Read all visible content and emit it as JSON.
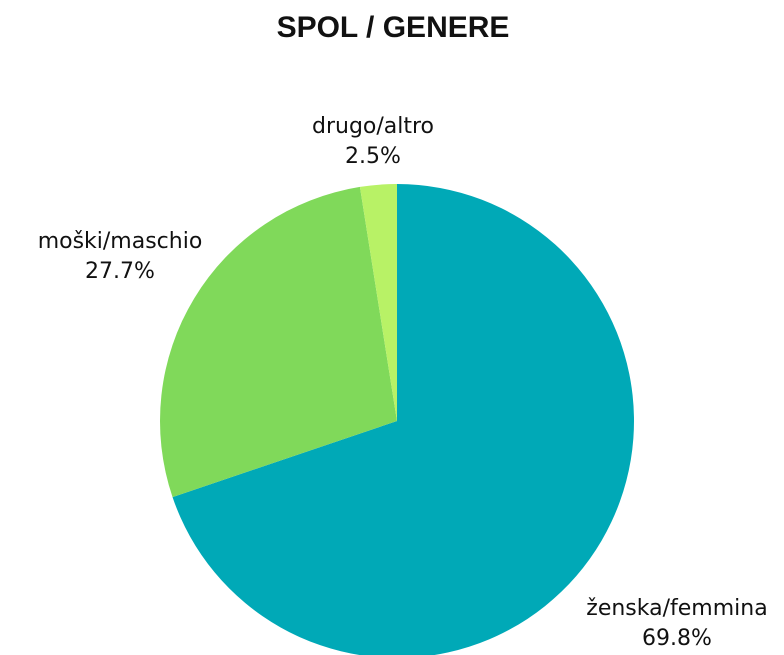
{
  "chart_data": {
    "type": "pie",
    "title": "SPOL / GENERE",
    "categories": [
      "ženska/femmina",
      "moški/maschio",
      "drugo/altro"
    ],
    "values": [
      69.8,
      27.7,
      2.5
    ],
    "value_labels": [
      "69.8%",
      "27.7%",
      "2.5%"
    ],
    "colors": [
      "#00a9b7",
      "#80d95a",
      "#b8f266"
    ]
  }
}
